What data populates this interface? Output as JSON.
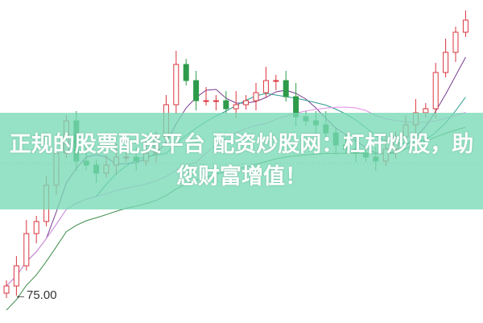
{
  "chart_data": {
    "type": "candlestick",
    "title": "",
    "ylim": [
      73.35,
      93.4
    ],
    "grid": false,
    "open_start": 75.2,
    "closes": [
      75.65,
      76.9,
      78.9,
      79.65,
      81.9,
      83.9,
      85.9,
      83.4,
      83.15,
      82.65,
      83.15,
      83.65,
      83.65,
      83.4,
      83.9,
      84.9,
      86.9,
      89.4,
      88.4,
      87.15,
      87.15,
      87.15,
      86.65,
      86.9,
      87.15,
      87.65,
      88.4,
      88.4,
      87.4,
      86.15,
      85.9,
      85.65,
      85.15,
      84.4,
      84.15,
      83.9,
      83.65,
      83.4,
      84.15,
      84.9,
      85.65,
      86.4,
      86.65,
      88.9,
      90.15,
      91.4,
      92.15
    ],
    "moving_averages": [
      {
        "period": 5,
        "color": "#7a3b8f"
      },
      {
        "period": 10,
        "color": "#2a9d8f"
      },
      {
        "period": 20,
        "color": "#e48ee6"
      },
      {
        "period": 40,
        "color": "#3c8c4a"
      }
    ],
    "up_color": "#d9363e",
    "down_color": "#2e9b4a",
    "annotation": {
      "label": "75.00",
      "value": 75.0
    },
    "reference_line_value": 83.25
  },
  "banner": {
    "text": "正规的股票配资平台 配资炒股网：杠杆炒股，助您财富增值！",
    "color": "#78dab6"
  }
}
